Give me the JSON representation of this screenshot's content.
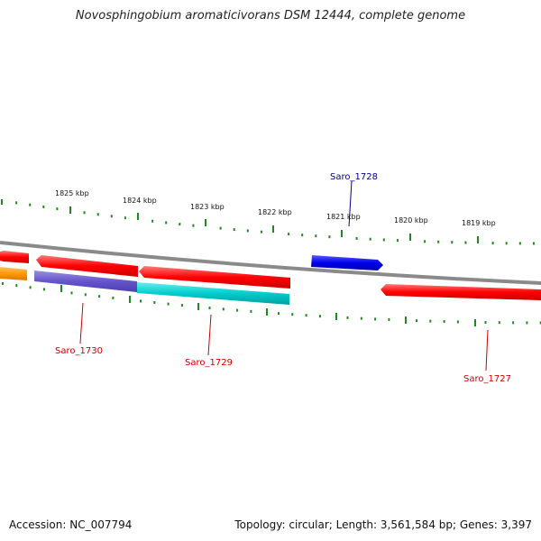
{
  "title": "Novosphingobium aromaticivorans DSM 12444, complete genome",
  "footer": {
    "accession": "Accession: NC_007794",
    "summary": "Topology: circular; Length: 3,561,584 bp; Genes: 3,397"
  },
  "scale_labels": [
    "1825 kbp",
    "1824 kbp",
    "1823 kbp",
    "1822 kbp",
    "1821 kbp",
    "1820 kbp",
    "1819 kbp"
  ],
  "gene_labels": [
    "Saro_1728",
    "Saro_1730",
    "Saro_1729",
    "Saro_1727"
  ],
  "colors": {
    "backbone": "#8a8a8a",
    "tick": "#1f8a1f",
    "label_forward": "#00008b",
    "label_reverse": "#cc0000",
    "red": "#ff0000",
    "blue": "#0000ee",
    "orange": "#ff9900",
    "purple": "#6655cc",
    "cyan": "#00cccc"
  }
}
